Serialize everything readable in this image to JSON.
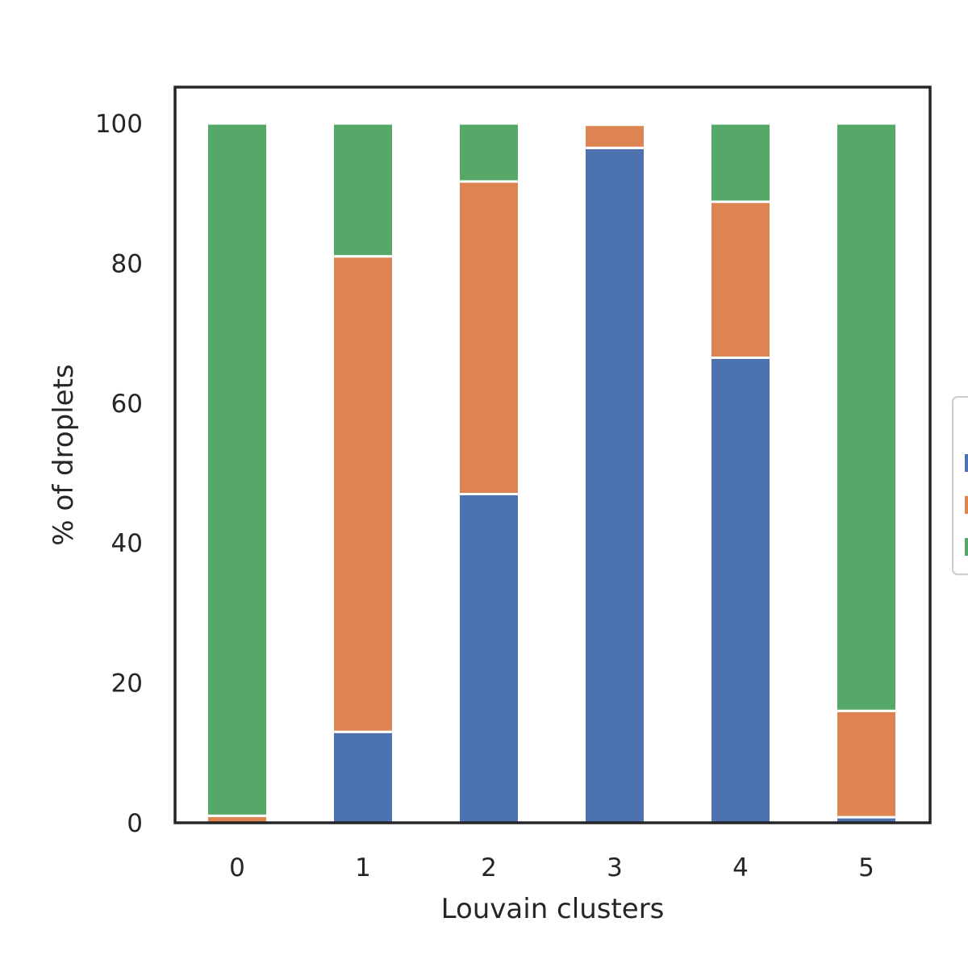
{
  "chart_data": {
    "type": "bar",
    "stacked": true,
    "title": "",
    "xlabel": "Louvain clusters",
    "ylabel": "% of droplets",
    "categories": [
      "0",
      "1",
      "2",
      "3",
      "4",
      "5"
    ],
    "ylim": [
      0,
      105
    ],
    "yticks": [
      "0",
      "20",
      "40",
      "60",
      "80",
      "100"
    ],
    "grid": false,
    "legend_position": "right",
    "series": [
      {
        "color": "#4c72b0",
        "values": [
          0,
          13,
          47,
          96.5,
          66.5,
          0.8
        ]
      },
      {
        "color": "#dd8452",
        "values": [
          1,
          68,
          44.7,
          3.3,
          22.3,
          15.2
        ]
      },
      {
        "color": "#55a868",
        "values": [
          99,
          19,
          8.3,
          0,
          11.2,
          84
        ]
      }
    ]
  }
}
